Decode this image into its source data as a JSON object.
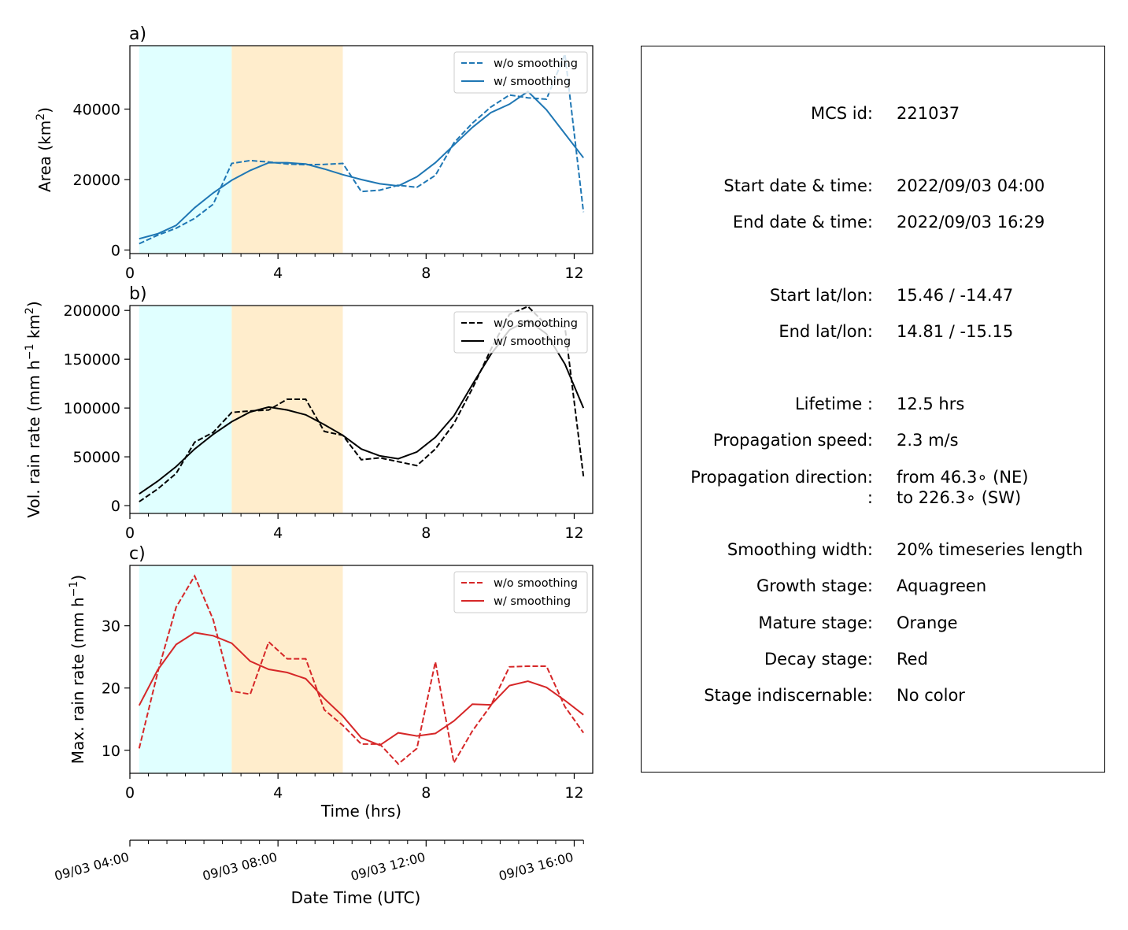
{
  "chart_data": [
    {
      "type": "line",
      "panel_label": "a)",
      "title": "",
      "xlabel": "",
      "ylabel": "Area  (km$^2$)",
      "ylabel_parts": [
        "Area  (km",
        "2",
        ")"
      ],
      "xlim": [
        0,
        12.5
      ],
      "ylim": [
        -1000,
        58000
      ],
      "xticks": [
        0,
        4,
        8,
        12
      ],
      "xtick_labels": [
        "0",
        "4",
        "8",
        "12"
      ],
      "yticks": [
        0,
        20000,
        40000
      ],
      "ytick_labels": [
        "0",
        "20000",
        "40000"
      ],
      "legend_position": "top-right",
      "stages": [
        {
          "stage": "growth",
          "x0": 0.25,
          "x1": 2.75,
          "color": "#e0ffff"
        },
        {
          "stage": "mature",
          "x0": 2.75,
          "x1": 5.75,
          "color": "#ffedcc"
        }
      ],
      "series": [
        {
          "name": "w/o smoothing",
          "style": "dashed",
          "color": "#1f77b4",
          "x": [
            0.25,
            0.75,
            1.25,
            1.75,
            2.25,
            2.75,
            3.25,
            3.75,
            4.25,
            4.75,
            5.25,
            5.75,
            6.25,
            6.75,
            7.25,
            7.75,
            8.25,
            8.75,
            9.25,
            9.75,
            10.25,
            10.75,
            11.25,
            11.75,
            12.25
          ],
          "y": [
            1800,
            4200,
            6200,
            9000,
            13000,
            24600,
            25400,
            25000,
            24400,
            24200,
            24300,
            24600,
            16600,
            17000,
            18400,
            17800,
            21200,
            30400,
            36000,
            40600,
            44000,
            43200,
            42800,
            55600,
            10800
          ]
        },
        {
          "name": "w/ smoothing",
          "style": "solid",
          "color": "#1f77b4",
          "x": [
            0.25,
            0.75,
            1.25,
            1.75,
            2.25,
            2.75,
            3.25,
            3.75,
            4.25,
            4.75,
            5.25,
            5.75,
            6.25,
            6.75,
            7.25,
            7.75,
            8.25,
            8.75,
            9.25,
            9.75,
            10.25,
            10.75,
            11.25,
            11.75,
            12.25
          ],
          "y": [
            3200,
            4600,
            7000,
            12000,
            16200,
            19800,
            22600,
            24800,
            24800,
            24400,
            23000,
            21400,
            20000,
            18800,
            18200,
            20800,
            24800,
            29800,
            34800,
            39000,
            41400,
            45000,
            39800,
            33000,
            26200
          ]
        }
      ]
    },
    {
      "type": "line",
      "panel_label": "b)",
      "title": "",
      "xlabel": "",
      "ylabel": "Vol. rain rate (mm h$^{-1}$ km$^2$)",
      "ylabel_parts": [
        "Vol. rain rate (mm h",
        "−1",
        " km",
        "2",
        ")"
      ],
      "xlim": [
        0,
        12.5
      ],
      "ylim": [
        -8000,
        205000
      ],
      "xticks": [
        0,
        4,
        8,
        12
      ],
      "xtick_labels": [
        "0",
        "4",
        "8",
        "12"
      ],
      "yticks": [
        0,
        50000,
        100000,
        150000,
        200000
      ],
      "ytick_labels": [
        "0",
        "50000",
        "100000",
        "150000",
        "200000"
      ],
      "legend_position": "top-right",
      "stages": [
        {
          "stage": "growth",
          "x0": 0.25,
          "x1": 2.75,
          "color": "#e0ffff"
        },
        {
          "stage": "mature",
          "x0": 2.75,
          "x1": 5.75,
          "color": "#ffedcc"
        }
      ],
      "series": [
        {
          "name": "w/o smoothing",
          "style": "dashed",
          "color": "#000000",
          "x": [
            0.25,
            0.75,
            1.25,
            1.75,
            2.25,
            2.75,
            3.25,
            3.75,
            4.25,
            4.75,
            5.25,
            5.75,
            6.25,
            6.75,
            7.25,
            7.75,
            8.25,
            8.75,
            9.25,
            9.75,
            10.25,
            10.75,
            11.25,
            11.75,
            12.25
          ],
          "y": [
            4000,
            17000,
            33000,
            65000,
            75000,
            95500,
            97000,
            98000,
            109000,
            109000,
            76000,
            72000,
            47000,
            49000,
            45000,
            41000,
            58000,
            84000,
            120000,
            160000,
            196000,
            204000,
            185000,
            183000,
            30000
          ]
        },
        {
          "name": "w/ smoothing",
          "style": "solid",
          "color": "#000000",
          "x": [
            0.25,
            0.75,
            1.25,
            1.75,
            2.25,
            2.75,
            3.25,
            3.75,
            4.25,
            4.75,
            5.25,
            5.75,
            6.25,
            6.75,
            7.25,
            7.75,
            8.25,
            8.75,
            9.25,
            9.75,
            10.25,
            10.75,
            11.25,
            11.75,
            12.25
          ],
          "y": [
            12000,
            25000,
            40000,
            58000,
            73000,
            86000,
            96000,
            101000,
            98000,
            93000,
            83000,
            72000,
            58000,
            51000,
            48000,
            55000,
            70000,
            92000,
            124000,
            155000,
            180000,
            190000,
            176000,
            145000,
            100000
          ]
        }
      ]
    },
    {
      "type": "line",
      "panel_label": "c)",
      "title": "",
      "xlabel": "Time (hrs)",
      "ylabel": "Max. rain rate  (mm h$^{-1}$)",
      "ylabel_parts": [
        "Max. rain rate  (mm h",
        "−1",
        ")"
      ],
      "xlim": [
        0,
        12.5
      ],
      "ylim": [
        6.3,
        39.7
      ],
      "xticks": [
        0,
        4,
        8,
        12
      ],
      "xtick_labels": [
        "0",
        "4",
        "8",
        "12"
      ],
      "yticks": [
        10,
        20,
        30
      ],
      "ytick_labels": [
        "10",
        "20",
        "30"
      ],
      "legend_position": "top-right",
      "stages": [
        {
          "stage": "growth",
          "x0": 0.25,
          "x1": 2.75,
          "color": "#e0ffff"
        },
        {
          "stage": "mature",
          "x0": 2.75,
          "x1": 5.75,
          "color": "#ffedcc"
        }
      ],
      "series": [
        {
          "name": "w/o smoothing",
          "style": "dashed",
          "color": "#d62728",
          "x": [
            0.25,
            0.75,
            1.25,
            1.75,
            2.25,
            2.75,
            3.25,
            3.75,
            4.25,
            4.75,
            5.25,
            5.75,
            6.25,
            6.75,
            7.25,
            7.75,
            8.25,
            8.75,
            9.25,
            9.75,
            10.25,
            10.75,
            11.25,
            11.75,
            12.25
          ],
          "y": [
            10.3,
            22.5,
            33.0,
            38.0,
            31.0,
            19.5,
            19.0,
            27.4,
            24.7,
            24.7,
            16.5,
            14.0,
            11.0,
            11.0,
            7.8,
            10.3,
            24.2,
            8.0,
            13.1,
            17.2,
            23.4,
            23.5,
            23.5,
            17.0,
            12.8
          ]
        },
        {
          "name": "w/ smoothing",
          "style": "solid",
          "color": "#d62728",
          "x": [
            0.25,
            0.75,
            1.25,
            1.75,
            2.25,
            2.75,
            3.25,
            3.75,
            4.25,
            4.75,
            5.25,
            5.75,
            6.25,
            6.75,
            7.25,
            7.75,
            8.25,
            8.75,
            9.25,
            9.75,
            10.25,
            10.75,
            11.25,
            11.75,
            12.25
          ],
          "y": [
            17.2,
            22.9,
            27.0,
            28.9,
            28.4,
            27.2,
            24.3,
            23.0,
            22.5,
            21.5,
            18.3,
            15.5,
            12.0,
            10.8,
            12.8,
            12.3,
            12.7,
            14.7,
            17.4,
            17.3,
            20.4,
            21.1,
            20.1,
            18.0,
            15.7
          ]
        }
      ]
    }
  ],
  "date_axis": {
    "label": "Date Time (UTC)",
    "tick_labels": [
      "09/03 04:00",
      "09/03 08:00",
      "09/03 12:00",
      "09/03 16:00"
    ],
    "tick_hours": [
      0,
      4,
      8,
      12
    ],
    "minor_hours": [
      0.5,
      1,
      1.5,
      2,
      2.5,
      3,
      3.5,
      4.5,
      5,
      5.5,
      6,
      6.5,
      7,
      7.5,
      8.5,
      9,
      9.5,
      10,
      10.5,
      11,
      11.5
    ],
    "end_tick_hour": 12.25
  },
  "info": {
    "rows": [
      {
        "label": "MCS id:",
        "value": [
          "221037"
        ]
      },
      {
        "label": "Start date & time:",
        "value": [
          "2022/09/03 04:00"
        ]
      },
      {
        "label": "End date & time:",
        "value": [
          "2022/09/03 16:29"
        ]
      },
      {
        "label": "Start lat/lon:",
        "value": [
          "15.46 / -14.47"
        ]
      },
      {
        "label": "End lat/lon:",
        "value": [
          "14.81 / -15.15"
        ]
      },
      {
        "label": "Lifetime :",
        "value": [
          "12.5 hrs"
        ]
      },
      {
        "label": "Propagation speed:",
        "value": [
          "2.3 m/s"
        ]
      },
      {
        "label": "Propagation direction:\n:",
        "value": [
          "from  46.3∘ (NE)",
          "to   226.3∘ (SW)"
        ]
      },
      {
        "label": "Smoothing width:",
        "value": [
          "20% timeseries length"
        ]
      },
      {
        "label": "Growth stage:",
        "value": [
          "Aquagreen"
        ]
      },
      {
        "label": "Mature stage:",
        "value": [
          "Orange"
        ]
      },
      {
        "label": "Decay stage:",
        "value": [
          "Red"
        ]
      },
      {
        "label": "Stage indiscernable:",
        "value": [
          "No color"
        ]
      }
    ]
  }
}
